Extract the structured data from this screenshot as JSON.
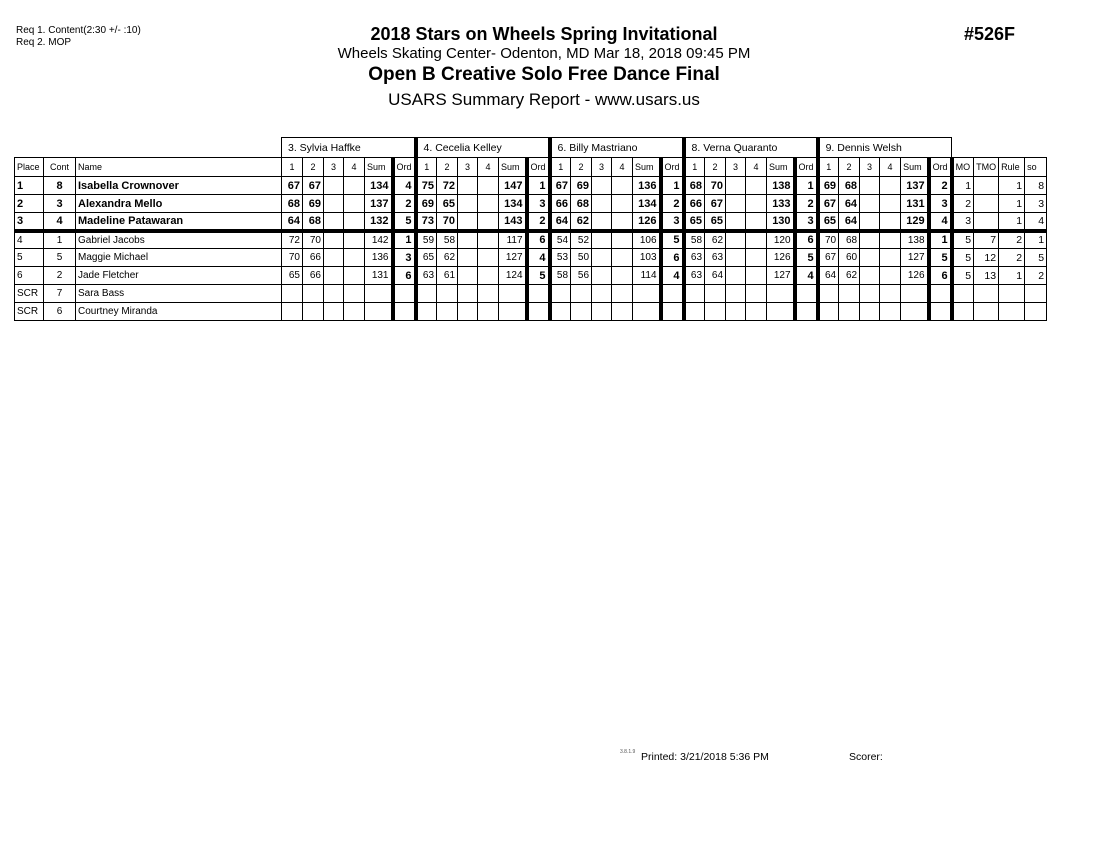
{
  "requirements": [
    "Req  1.  Content(2:30 +/- :10)",
    "Req  2.  MOP"
  ],
  "header": {
    "title": "2018 Stars on Wheels Spring Invitational",
    "subtitle": "Wheels Skating Center- Odenton, MD  Mar 18, 2018  09:45 PM",
    "event": "Open B Creative Solo Free Dance Final",
    "report": "USARS Summary Report - www.usars.us",
    "event_code": "#526F"
  },
  "table": {
    "judges": [
      "3.  Sylvia Haffke",
      "4.  Cecelia  Kelley",
      "6.  Billy Mastriano",
      "8.  Verna Quaranto",
      "9.  Dennis Welsh"
    ],
    "columns": {
      "place": "Place",
      "cont": "Cont",
      "name": "Name",
      "marks": [
        "1",
        "2",
        "3",
        "4",
        "Sum",
        "Ord"
      ],
      "extra": [
        "MO",
        "TMO",
        "Rule",
        "so"
      ]
    },
    "rows": [
      {
        "place": "1",
        "cont": "8",
        "name": "Isabella Crownover",
        "bold": true,
        "scores": [
          [
            "67",
            "67",
            "",
            "",
            "134",
            "4"
          ],
          [
            "75",
            "72",
            "",
            "",
            "147",
            "1"
          ],
          [
            "67",
            "69",
            "",
            "",
            "136",
            "1"
          ],
          [
            "68",
            "70",
            "",
            "",
            "138",
            "1"
          ],
          [
            "69",
            "68",
            "",
            "",
            "137",
            "2"
          ]
        ],
        "extra": [
          "1",
          "",
          "1",
          "8"
        ]
      },
      {
        "place": "2",
        "cont": "3",
        "name": "Alexandra Mello",
        "bold": true,
        "scores": [
          [
            "68",
            "69",
            "",
            "",
            "137",
            "2"
          ],
          [
            "69",
            "65",
            "",
            "",
            "134",
            "3"
          ],
          [
            "66",
            "68",
            "",
            "",
            "134",
            "2"
          ],
          [
            "66",
            "67",
            "",
            "",
            "133",
            "2"
          ],
          [
            "67",
            "64",
            "",
            "",
            "131",
            "3"
          ]
        ],
        "extra": [
          "2",
          "",
          "1",
          "3"
        ]
      },
      {
        "place": "3",
        "cont": "4",
        "name": "Madeline Patawaran",
        "bold": true,
        "scores": [
          [
            "64",
            "68",
            "",
            "",
            "132",
            "5"
          ],
          [
            "73",
            "70",
            "",
            "",
            "143",
            "2"
          ],
          [
            "64",
            "62",
            "",
            "",
            "126",
            "3"
          ],
          [
            "65",
            "65",
            "",
            "",
            "130",
            "3"
          ],
          [
            "65",
            "64",
            "",
            "",
            "129",
            "4"
          ]
        ],
        "extra": [
          "3",
          "",
          "1",
          "4"
        ]
      },
      {
        "place": "4",
        "cont": "1",
        "name": "Gabriel Jacobs",
        "bold": false,
        "scores": [
          [
            "72",
            "70",
            "",
            "",
            "142",
            "1"
          ],
          [
            "59",
            "58",
            "",
            "",
            "117",
            "6"
          ],
          [
            "54",
            "52",
            "",
            "",
            "106",
            "5"
          ],
          [
            "58",
            "62",
            "",
            "",
            "120",
            "6"
          ],
          [
            "70",
            "68",
            "",
            "",
            "138",
            "1"
          ]
        ],
        "extra": [
          "5",
          "7",
          "2",
          "1"
        ]
      },
      {
        "place": "5",
        "cont": "5",
        "name": "Maggie Michael",
        "bold": false,
        "scores": [
          [
            "70",
            "66",
            "",
            "",
            "136",
            "3"
          ],
          [
            "65",
            "62",
            "",
            "",
            "127",
            "4"
          ],
          [
            "53",
            "50",
            "",
            "",
            "103",
            "6"
          ],
          [
            "63",
            "63",
            "",
            "",
            "126",
            "5"
          ],
          [
            "67",
            "60",
            "",
            "",
            "127",
            "5"
          ]
        ],
        "extra": [
          "5",
          "12",
          "2",
          "5"
        ]
      },
      {
        "place": "6",
        "cont": "2",
        "name": "Jade Fletcher",
        "bold": false,
        "scores": [
          [
            "65",
            "66",
            "",
            "",
            "131",
            "6"
          ],
          [
            "63",
            "61",
            "",
            "",
            "124",
            "5"
          ],
          [
            "58",
            "56",
            "",
            "",
            "114",
            "4"
          ],
          [
            "63",
            "64",
            "",
            "",
            "127",
            "4"
          ],
          [
            "64",
            "62",
            "",
            "",
            "126",
            "6"
          ]
        ],
        "extra": [
          "5",
          "13",
          "1",
          "2"
        ]
      },
      {
        "place": "SCR",
        "cont": "7",
        "name": "Sara Bass",
        "bold": false,
        "scores": [
          [
            "",
            "",
            "",
            "",
            "",
            ""
          ],
          [
            "",
            "",
            "",
            "",
            "",
            ""
          ],
          [
            "",
            "",
            "",
            "",
            "",
            ""
          ],
          [
            "",
            "",
            "",
            "",
            "",
            ""
          ],
          [
            "",
            "",
            "",
            "",
            "",
            ""
          ]
        ],
        "extra": [
          "",
          "",
          "",
          ""
        ]
      },
      {
        "place": "SCR",
        "cont": "6",
        "name": "Courtney Miranda",
        "bold": false,
        "scores": [
          [
            "",
            "",
            "",
            "",
            "",
            ""
          ],
          [
            "",
            "",
            "",
            "",
            "",
            ""
          ],
          [
            "",
            "",
            "",
            "",
            "",
            ""
          ],
          [
            "",
            "",
            "",
            "",
            "",
            ""
          ],
          [
            "",
            "",
            "",
            "",
            "",
            ""
          ]
        ],
        "extra": [
          "",
          "",
          "",
          ""
        ]
      }
    ]
  },
  "footer": {
    "version": "3.8.1.9",
    "printed": "Printed:  3/21/2018  5:36 PM",
    "scorer": "Scorer:"
  }
}
